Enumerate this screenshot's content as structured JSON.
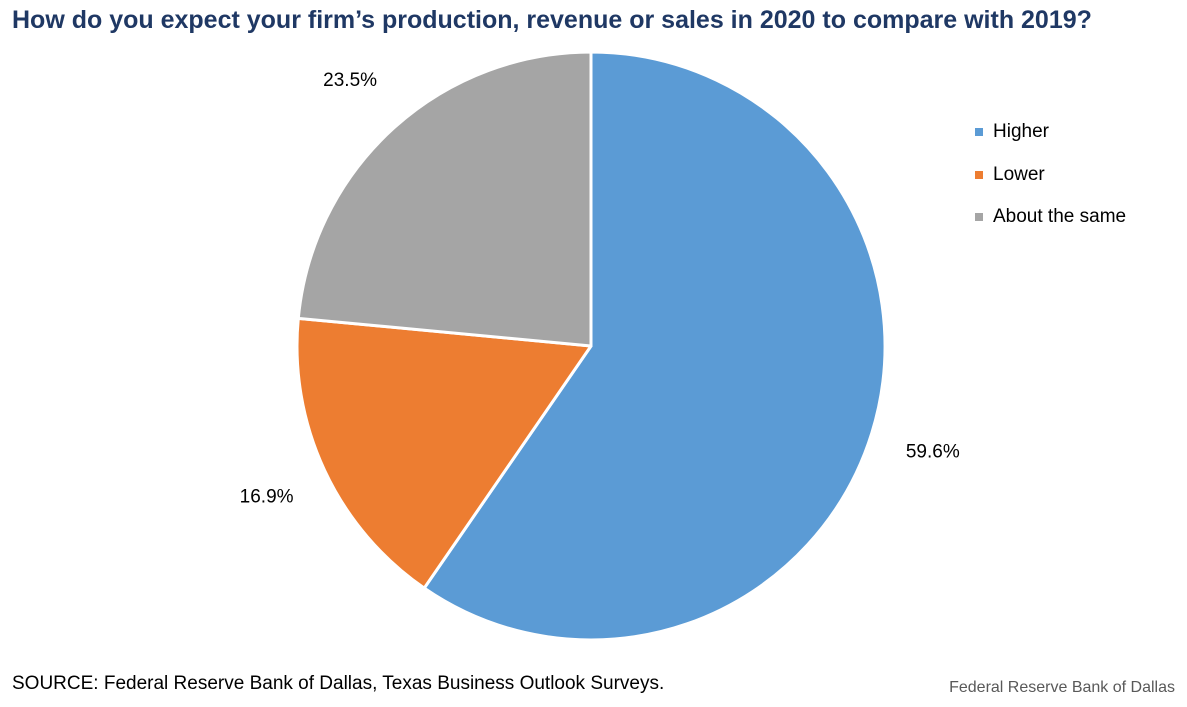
{
  "chart_data": {
    "type": "pie",
    "title": "How do you expect your firm’s production, revenue or sales in 2020 to compare with 2019?",
    "start": "12 o'clock",
    "direction": "clockwise",
    "legend_position": "right",
    "slices": [
      {
        "name": "Higher",
        "value": 59.6,
        "label": "59.6%",
        "color": "#5b9bd5"
      },
      {
        "name": "Lower",
        "value": 16.9,
        "label": "16.9%",
        "color": "#ed7d31"
      },
      {
        "name": "About the same",
        "value": 23.5,
        "label": "23.5%",
        "color": "#a5a5a5"
      }
    ]
  },
  "footer": {
    "source": "SOURCE: Federal Reserve Bank of Dallas, Texas Business  Outlook Surveys.",
    "credit": "Federal Reserve Bank of Dallas"
  }
}
